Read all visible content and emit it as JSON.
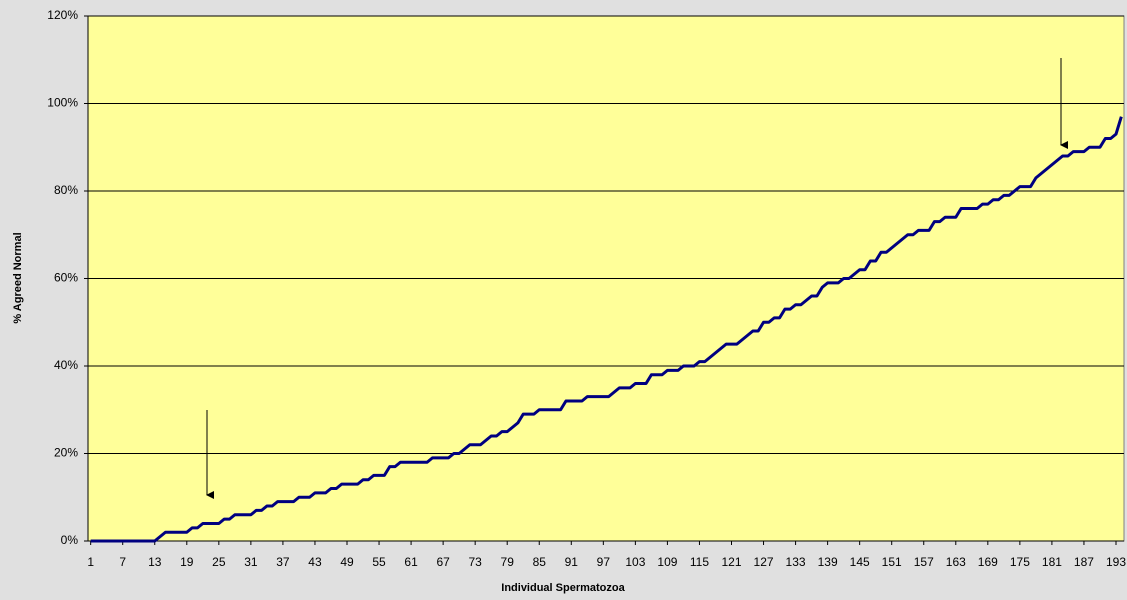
{
  "chart_data": {
    "type": "line",
    "x_label": "Individual Spermatozoa",
    "y_label": "% Agreed Normal",
    "x": [
      1,
      2,
      3,
      4,
      5,
      6,
      7,
      8,
      9,
      10,
      11,
      12,
      13,
      14,
      15,
      16,
      17,
      18,
      19,
      20,
      21,
      22,
      23,
      24,
      25,
      26,
      27,
      28,
      29,
      30,
      31,
      32,
      33,
      34,
      35,
      36,
      37,
      38,
      39,
      40,
      41,
      42,
      43,
      44,
      45,
      46,
      47,
      48,
      49,
      50,
      51,
      52,
      53,
      54,
      55,
      56,
      57,
      58,
      59,
      60,
      61,
      62,
      63,
      64,
      65,
      66,
      67,
      68,
      69,
      70,
      71,
      72,
      73,
      74,
      75,
      76,
      77,
      78,
      79,
      80,
      81,
      82,
      83,
      84,
      85,
      86,
      87,
      88,
      89,
      90,
      91,
      92,
      93,
      94,
      95,
      96,
      97,
      98,
      99,
      100,
      101,
      102,
      103,
      104,
      105,
      106,
      107,
      108,
      109,
      110,
      111,
      112,
      113,
      114,
      115,
      116,
      117,
      118,
      119,
      120,
      121,
      122,
      123,
      124,
      125,
      126,
      127,
      128,
      129,
      130,
      131,
      132,
      133,
      134,
      135,
      136,
      137,
      138,
      139,
      140,
      141,
      142,
      143,
      144,
      145,
      146,
      147,
      148,
      149,
      150,
      151,
      152,
      153,
      154,
      155,
      156,
      157,
      158,
      159,
      160,
      161,
      162,
      163,
      164,
      165,
      166,
      167,
      168,
      169,
      170,
      171,
      172,
      173,
      174,
      175,
      176,
      177,
      178,
      179,
      180,
      181,
      182,
      183,
      184,
      185,
      186,
      187,
      188,
      189,
      190,
      191,
      192,
      193,
      194
    ],
    "values": [
      0,
      0,
      0,
      0,
      0,
      0,
      0,
      0,
      0,
      0,
      0,
      0,
      0,
      1,
      2,
      2,
      2,
      2,
      2,
      3,
      3,
      4,
      4,
      4,
      4,
      5,
      5,
      6,
      6,
      6,
      6,
      7,
      7,
      8,
      8,
      9,
      9,
      9,
      9,
      10,
      10,
      10,
      11,
      11,
      11,
      12,
      12,
      13,
      13,
      13,
      13,
      14,
      14,
      15,
      15,
      15,
      17,
      17,
      18,
      18,
      18,
      18,
      18,
      18,
      19,
      19,
      19,
      19,
      20,
      20,
      21,
      22,
      22,
      22,
      23,
      24,
      24,
      25,
      25,
      26,
      27,
      29,
      29,
      29,
      30,
      30,
      30,
      30,
      30,
      32,
      32,
      32,
      32,
      33,
      33,
      33,
      33,
      33,
      34,
      35,
      35,
      35,
      36,
      36,
      36,
      38,
      38,
      38,
      39,
      39,
      39,
      40,
      40,
      40,
      41,
      41,
      42,
      43,
      44,
      45,
      45,
      45,
      46,
      47,
      48,
      48,
      50,
      50,
      51,
      51,
      53,
      53,
      54,
      54,
      55,
      56,
      56,
      58,
      59,
      59,
      59,
      60,
      60,
      61,
      62,
      62,
      64,
      64,
      66,
      66,
      67,
      68,
      69,
      70,
      70,
      71,
      71,
      71,
      73,
      73,
      74,
      74,
      74,
      76,
      76,
      76,
      76,
      77,
      77,
      78,
      78,
      79,
      79,
      80,
      81,
      81,
      81,
      83,
      84,
      85,
      86,
      87,
      88,
      88,
      89,
      89,
      89,
      90,
      90,
      90,
      92,
      92,
      93,
      97
    ],
    "color": "#000080",
    "xlim": [
      0.5,
      194.5
    ],
    "xticks": [
      1,
      7,
      13,
      19,
      25,
      31,
      37,
      43,
      49,
      55,
      61,
      67,
      73,
      79,
      85,
      91,
      97,
      103,
      109,
      115,
      121,
      127,
      133,
      139,
      145,
      151,
      157,
      163,
      169,
      175,
      181,
      187,
      193
    ],
    "ylim": [
      0,
      120
    ],
    "yticks": [
      {
        "value": 0,
        "label": "0%"
      },
      {
        "value": 20,
        "label": "20%"
      },
      {
        "value": 40,
        "label": "40%"
      },
      {
        "value": 60,
        "label": "60%"
      },
      {
        "value": 80,
        "label": "80%"
      },
      {
        "value": 100,
        "label": "100%"
      },
      {
        "value": 120,
        "label": "120%"
      }
    ],
    "grid": true
  }
}
